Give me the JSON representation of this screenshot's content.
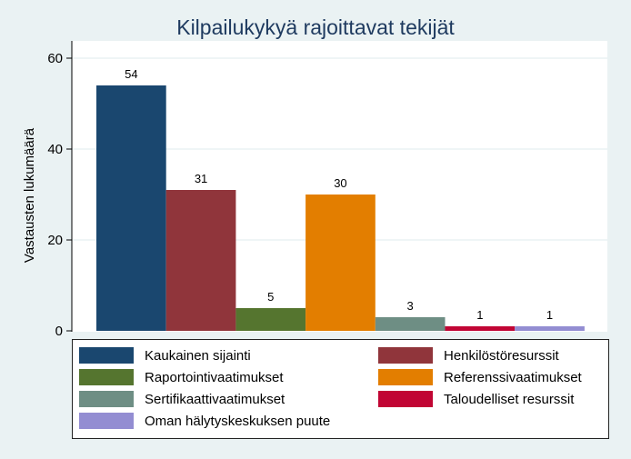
{
  "chart_data": {
    "type": "bar",
    "title": "Kilpailukykyä rajoittavat tekijät",
    "ylabel": "Vastausten lukumäärä",
    "xlabel": "",
    "ylim": [
      0,
      60
    ],
    "yticks": [
      0,
      20,
      40,
      60
    ],
    "grid": true,
    "legend_position": "bottom",
    "categories": [
      "Kaukainen sijainti",
      "Henkilöstöresurssit",
      "Raportointivaatimukset",
      "Referenssivaatimukset",
      "Sertifikaattivaatimukset",
      "Taloudelliset resurssit",
      "Oman hälytyskeskuksen puute"
    ],
    "values": [
      54,
      31,
      5,
      30,
      3,
      1,
      1
    ],
    "colors": [
      "#1a476f",
      "#90353b",
      "#55752f",
      "#e37e00",
      "#6e8e84",
      "#c10534",
      "#938dd2"
    ]
  }
}
